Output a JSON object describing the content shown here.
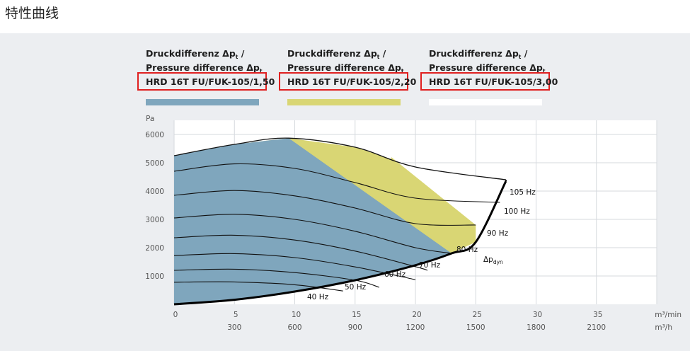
{
  "page": {
    "title": "特性曲线"
  },
  "chart_data": {
    "type": "line",
    "y_unit": "Pa",
    "x_unit_primary": "m³/min",
    "x_unit_secondary": "m³/h",
    "x_ticks_primary": [
      0,
      5,
      10,
      15,
      20,
      25,
      30,
      35
    ],
    "x_ticks_secondary": [
      300,
      600,
      900,
      1200,
      1500,
      1800,
      2100
    ],
    "xlim": [
      0,
      40
    ],
    "ylim": [
      0,
      6500
    ],
    "y_ticks": [
      1000,
      2000,
      3000,
      4000,
      5000,
      6000
    ],
    "grid": true,
    "legend": [
      {
        "title": "Druckdifferenz Δpt / Pressure difference Δpt",
        "title_line1": "Druckdifferenz Δp",
        "title_line1_sub": "t",
        "title_line1_suffix": " /",
        "title_line2": "Pressure difference Δp",
        "title_line2_sub": "t",
        "model": "HRD 16T FU/FUK-105/1,50",
        "color": "#7fa6bd"
      },
      {
        "title": "Druckdifferenz Δpt / Pressure difference Δpt",
        "title_line1": "Druckdifferenz Δp",
        "title_line1_sub": "t",
        "title_line1_suffix": " /",
        "title_line2": "Pressure difference Δp",
        "title_line2_sub": "t",
        "model": "HRD 16T FU/FUK-105/2,20",
        "color": "#d9d674"
      },
      {
        "title": "Druckdifferenz Δpt / Pressure difference Δpt",
        "title_line1": "Druckdifferenz Δp",
        "title_line1_sub": "t",
        "title_line1_suffix": " /",
        "title_line2": "Pressure difference Δp",
        "title_line2_sub": "t",
        "model": "HRD 16T FU/FUK-105/3,00",
        "color": "#ffffff"
      }
    ],
    "highlight_color": "#e02020",
    "dyn_curve": {
      "label": "Δp",
      "label_sub": "dyn",
      "points": [
        [
          0,
          0
        ],
        [
          5,
          160
        ],
        [
          10,
          450
        ],
        [
          15,
          850
        ],
        [
          20,
          1380
        ],
        [
          23,
          1800
        ],
        [
          25,
          2200
        ],
        [
          27.5,
          4350
        ]
      ]
    },
    "series": [
      {
        "name": "40 Hz",
        "points": [
          [
            0,
            780
          ],
          [
            5,
            790
          ],
          [
            10,
            690
          ],
          [
            14,
            470
          ]
        ]
      },
      {
        "name": "50 Hz",
        "points": [
          [
            0,
            1200
          ],
          [
            5,
            1240
          ],
          [
            10,
            1120
          ],
          [
            15,
            850
          ],
          [
            17,
            600
          ]
        ]
      },
      {
        "name": "60 Hz",
        "points": [
          [
            0,
            1720
          ],
          [
            5,
            1790
          ],
          [
            10,
            1650
          ],
          [
            15,
            1320
          ],
          [
            20,
            870
          ]
        ]
      },
      {
        "name": "70 Hz",
        "points": [
          [
            0,
            2350
          ],
          [
            5,
            2440
          ],
          [
            10,
            2270
          ],
          [
            15,
            1880
          ],
          [
            20,
            1330
          ],
          [
            21,
            1200
          ]
        ]
      },
      {
        "name": "80 Hz",
        "points": [
          [
            0,
            3050
          ],
          [
            5,
            3180
          ],
          [
            10,
            3000
          ],
          [
            15,
            2580
          ],
          [
            20,
            2000
          ],
          [
            23,
            1800
          ]
        ]
      },
      {
        "name": "90 Hz",
        "points": [
          [
            0,
            3850
          ],
          [
            5,
            4020
          ],
          [
            10,
            3830
          ],
          [
            15,
            3400
          ],
          [
            20,
            2850
          ],
          [
            25,
            2800
          ]
        ]
      },
      {
        "name": "100 Hz",
        "points": [
          [
            0,
            4700
          ],
          [
            5,
            4960
          ],
          [
            10,
            4800
          ],
          [
            15,
            4300
          ],
          [
            20,
            3750
          ],
          [
            27,
            3600
          ]
        ]
      },
      {
        "name": "105 Hz",
        "points": [
          [
            0,
            5250
          ],
          [
            5,
            5650
          ],
          [
            9.5,
            5870
          ],
          [
            15,
            5550
          ],
          [
            20,
            4850
          ],
          [
            27.5,
            4400
          ]
        ]
      }
    ],
    "regions": {
      "blue_boundary": [
        [
          9.5,
          5870
        ],
        [
          23,
          1800
        ]
      ],
      "yellow_boundary": [
        [
          18,
          5200
        ],
        [
          25,
          2800
        ]
      ]
    }
  }
}
